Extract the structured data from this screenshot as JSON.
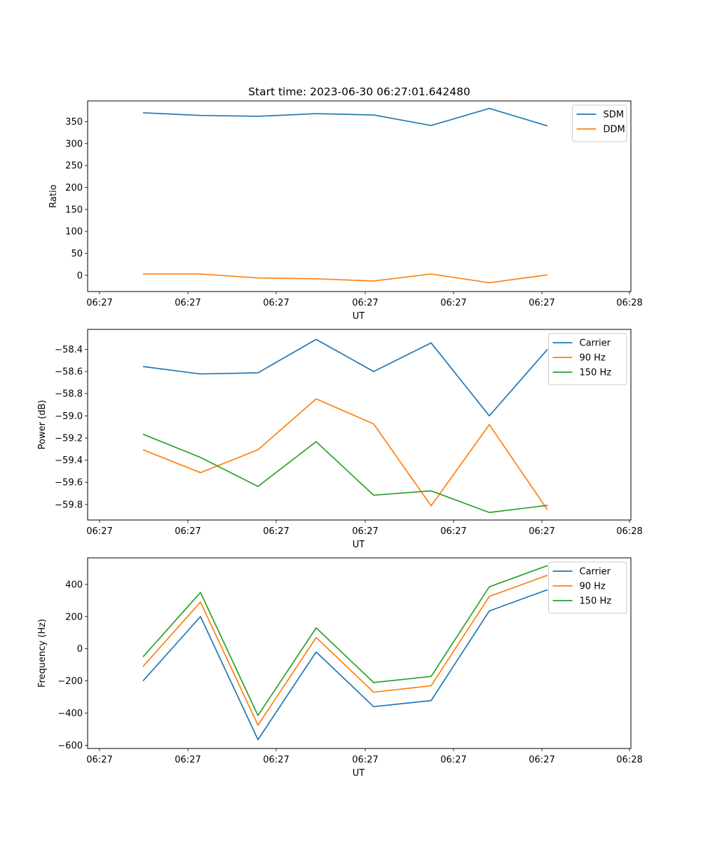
{
  "chart_data": [
    {
      "type": "line",
      "title": "Start time: 2023-06-30 06:27:01.642480",
      "xlabel": "UT",
      "ylabel": "Ratio",
      "x_tick_labels": [
        "06:27",
        "06:27",
        "06:27",
        "06:27",
        "06:27",
        "06:27",
        "06:28"
      ],
      "ylim": [
        -37,
        397
      ],
      "yticks": [
        0,
        50,
        100,
        150,
        200,
        250,
        300,
        350
      ],
      "legend_position": "top-right",
      "series": [
        {
          "name": "SDM",
          "color": "#1f77b4",
          "values": [
            370,
            364,
            362,
            368,
            365,
            341,
            380,
            340
          ]
        },
        {
          "name": "DDM",
          "color": "#ff7f0e",
          "values": [
            3,
            3,
            -6,
            -8,
            -13,
            3,
            -17,
            1
          ]
        }
      ]
    },
    {
      "type": "line",
      "title": "",
      "xlabel": "UT",
      "ylabel": "Power (dB)",
      "x_tick_labels": [
        "06:27",
        "06:27",
        "06:27",
        "06:27",
        "06:27",
        "06:27",
        "06:28"
      ],
      "ylim": [
        -59.94,
        -58.22
      ],
      "yticks": [
        -58.4,
        -58.6,
        -58.8,
        -59.0,
        -59.2,
        -59.4,
        -59.6,
        -59.8
      ],
      "ytick_labels": [
        "−58.4",
        "−58.6",
        "−58.8",
        "−59.0",
        "−59.2",
        "−59.4",
        "−59.6",
        "−59.8"
      ],
      "legend_position": "top-right",
      "series": [
        {
          "name": "Carrier",
          "color": "#1f77b4",
          "values": [
            -58.555,
            -58.622,
            -58.612,
            -58.31,
            -58.6,
            -58.342,
            -59.0,
            -58.4
          ]
        },
        {
          "name": "90 Hz",
          "color": "#ff7f0e",
          "values": [
            -59.306,
            -59.513,
            -59.306,
            -58.847,
            -59.073,
            -59.812,
            -59.08,
            -59.848
          ]
        },
        {
          "name": "150 Hz",
          "color": "#2ca02c",
          "values": [
            -59.166,
            -59.375,
            -59.637,
            -59.233,
            -59.716,
            -59.677,
            -59.872,
            -59.808
          ]
        }
      ]
    },
    {
      "type": "line",
      "title": "",
      "xlabel": "UT",
      "ylabel": "Frequency (Hz)",
      "x_tick_labels": [
        "06:27",
        "06:27",
        "06:27",
        "06:27",
        "06:27",
        "06:27",
        "06:28"
      ],
      "ylim": [
        -620,
        565
      ],
      "yticks": [
        -600,
        -400,
        -200,
        0,
        200,
        400
      ],
      "ytick_labels": [
        "−600",
        "−400",
        "−200",
        "0",
        "200",
        "400"
      ],
      "legend_position": "top-right",
      "series": [
        {
          "name": "Carrier",
          "color": "#1f77b4",
          "values": [
            -200,
            200,
            -565,
            -20,
            -360,
            -322,
            235,
            367
          ]
        },
        {
          "name": "90 Hz",
          "color": "#ff7f0e",
          "values": [
            -110,
            290,
            -475,
            70,
            -270,
            -230,
            325,
            457
          ]
        },
        {
          "name": "150 Hz",
          "color": "#2ca02c",
          "values": [
            -50,
            350,
            -415,
            130,
            -210,
            -172,
            385,
            517
          ]
        }
      ]
    }
  ]
}
